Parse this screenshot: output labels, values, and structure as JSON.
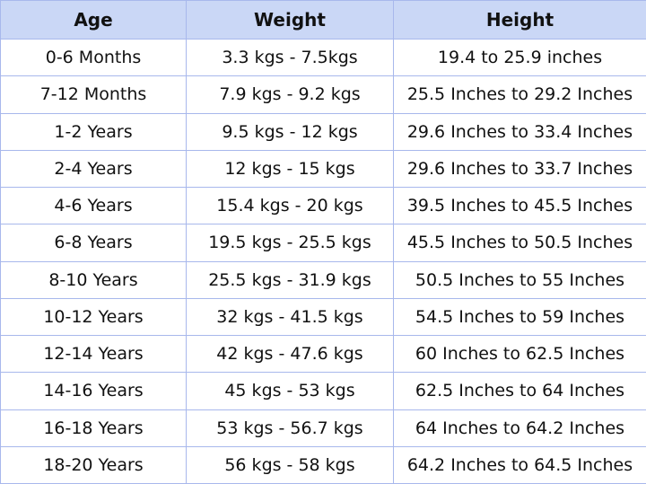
{
  "headers": [
    "Age",
    "Weight",
    "Height"
  ],
  "rows": [
    [
      "0-6 Months",
      "3.3 kgs - 7.5kgs",
      "19.4 to 25.9 inches"
    ],
    [
      "7-12 Months",
      "7.9 kgs - 9.2 kgs",
      "25.5 Inches to 29.2 Inches"
    ],
    [
      "1-2 Years",
      "9.5 kgs - 12 kgs",
      "29.6 Inches to 33.4 Inches"
    ],
    [
      "2-4 Years",
      "12 kgs - 15 kgs",
      "29.6 Inches to 33.7 Inches"
    ],
    [
      "4-6 Years",
      "15.4 kgs - 20 kgs",
      "39.5 Inches to 45.5 Inches"
    ],
    [
      "6-8 Years",
      "19.5 kgs - 25.5 kgs",
      "45.5 Inches to 50.5 Inches"
    ],
    [
      "8-10 Years",
      "25.5 kgs - 31.9 kgs",
      "50.5 Inches to 55 Inches"
    ],
    [
      "10-12 Years",
      "32 kgs - 41.5 kgs",
      "54.5 Inches to 59 Inches"
    ],
    [
      "12-14 Years",
      "42 kgs - 47.6 kgs",
      "60 Inches to 62.5 Inches"
    ],
    [
      "14-16 Years",
      "45 kgs - 53 kgs",
      "62.5 Inches to 64 Inches"
    ],
    [
      "16-18 Years",
      "53 kgs - 56.7 kgs",
      "64 Inches to 64.2 Inches"
    ],
    [
      "18-20 Years",
      "56 kgs - 58 kgs",
      "64.2 Inches to 64.5 Inches"
    ]
  ],
  "colors": {
    "header_bg": "#cad7f6",
    "border": "#a8b8ec"
  }
}
